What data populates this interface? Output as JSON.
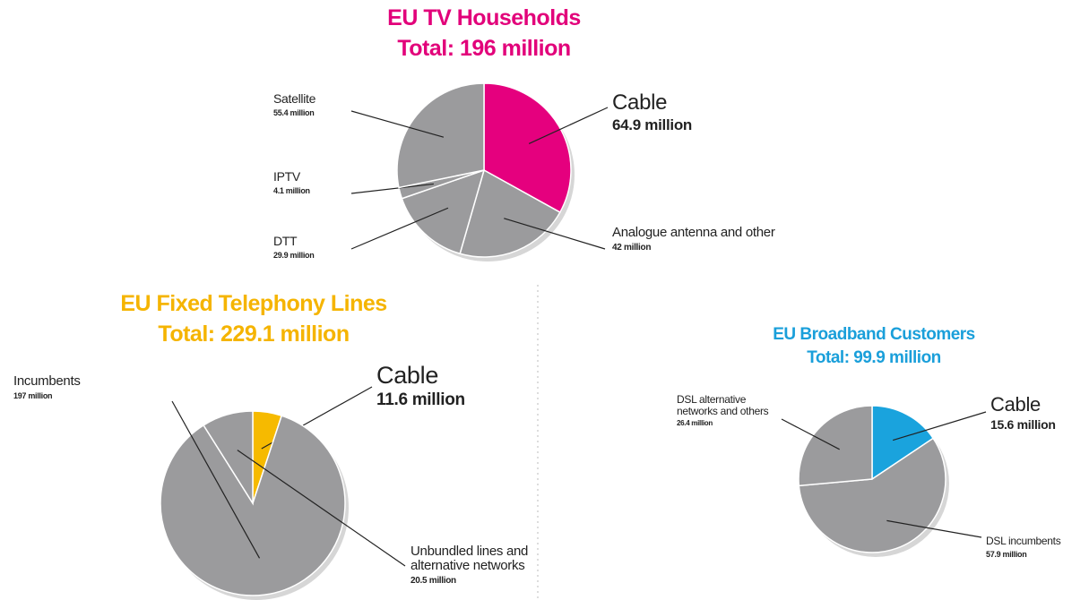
{
  "chart_data": [
    {
      "type": "pie",
      "title": "EU TV Households",
      "subtitle": "Total: 196 million",
      "title_color": "#e2007a",
      "categories": [
        "Cable",
        "Analogue antenna and other",
        "DTT",
        "IPTV",
        "Satellite"
      ],
      "values": [
        64.9,
        42,
        29.9,
        4.1,
        55.4
      ],
      "value_labels": [
        "64.9 million",
        "42 million",
        "29.9 million",
        "4.1 million",
        "55.4 million"
      ],
      "colors": [
        "#e5007e",
        "#9b9b9d",
        "#9b9b9d",
        "#9b9b9d",
        "#9b9b9d"
      ]
    },
    {
      "type": "pie",
      "title": "EU Fixed Telephony Lines",
      "subtitle": "Total: 229.1 million",
      "title_color": "#f5b400",
      "categories": [
        "Cable",
        "Incumbents",
        "Unbundled lines and alternative networks"
      ],
      "values": [
        11.6,
        197,
        20.5
      ],
      "value_labels": [
        "11.6 million",
        "197 million",
        "20.5 million"
      ],
      "colors": [
        "#f6ba00",
        "#9b9b9d",
        "#9b9b9d"
      ]
    },
    {
      "type": "pie",
      "title": "EU Broadband Customers",
      "subtitle": "Total: 99.9 million",
      "title_color": "#1a9fda",
      "categories": [
        "Cable",
        "DSL incumbents",
        "DSL alternative networks and others"
      ],
      "values": [
        15.6,
        57.9,
        26.4
      ],
      "value_labels": [
        "15.6 million",
        "57.9 million",
        "26.4 million"
      ],
      "colors": [
        "#1aa3dd",
        "#9b9b9d",
        "#9b9b9d"
      ]
    }
  ]
}
